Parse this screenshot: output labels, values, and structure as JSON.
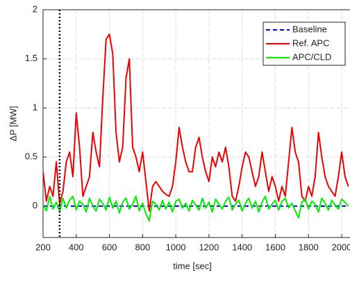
{
  "chart_data": {
    "type": "line",
    "xlabel": "time [sec]",
    "ylabel": "ΔP [MW]",
    "x": [
      200,
      220,
      240,
      260,
      280,
      300,
      320,
      340,
      360,
      380,
      400,
      420,
      440,
      460,
      480,
      500,
      520,
      540,
      560,
      580,
      600,
      620,
      640,
      660,
      680,
      700,
      720,
      740,
      760,
      780,
      800,
      820,
      840,
      860,
      880,
      900,
      920,
      940,
      960,
      980,
      1000,
      1020,
      1040,
      1060,
      1080,
      1100,
      1120,
      1140,
      1160,
      1180,
      1200,
      1220,
      1240,
      1260,
      1280,
      1300,
      1320,
      1340,
      1360,
      1380,
      1400,
      1420,
      1440,
      1460,
      1480,
      1500,
      1520,
      1540,
      1560,
      1580,
      1600,
      1620,
      1640,
      1660,
      1680,
      1700,
      1720,
      1740,
      1760,
      1780,
      1800,
      1820,
      1840,
      1860,
      1880,
      1900,
      1920,
      1940,
      1960,
      1980,
      2000,
      2020,
      2040
    ],
    "series": [
      {
        "name": "Baseline",
        "color": "#0000cc",
        "dash": true,
        "values": [
          0,
          0,
          0,
          0,
          0,
          0,
          0,
          0,
          0,
          0,
          0,
          0,
          0,
          0,
          0,
          0,
          0,
          0,
          0,
          0,
          0,
          0,
          0,
          0,
          0,
          0,
          0,
          0,
          0,
          0,
          0,
          0,
          0,
          0,
          0,
          0,
          0,
          0,
          0,
          0,
          0,
          0,
          0,
          0,
          0,
          0,
          0,
          0,
          0,
          0,
          0,
          0,
          0,
          0,
          0,
          0,
          0,
          0,
          0,
          0,
          0,
          0,
          0,
          0,
          0,
          0,
          0,
          0,
          0,
          0,
          0,
          0,
          0,
          0,
          0,
          0,
          0,
          0,
          0,
          0,
          0,
          0,
          0,
          0,
          0,
          0,
          0,
          0,
          0,
          0,
          0,
          0,
          0
        ]
      },
      {
        "name": "Ref. APC",
        "color": "#ee0000",
        "values": [
          0.35,
          0.05,
          0.2,
          0.1,
          0.45,
          0.02,
          0.15,
          0.45,
          0.55,
          0.3,
          0.95,
          0.6,
          0.1,
          0.2,
          0.3,
          0.75,
          0.55,
          0.4,
          1.1,
          1.7,
          1.75,
          1.55,
          0.75,
          0.45,
          0.6,
          1.3,
          1.5,
          0.6,
          0.5,
          0.35,
          0.55,
          0.25,
          -0.05,
          0.2,
          0.25,
          0.2,
          0.15,
          0.12,
          0.1,
          0.2,
          0.45,
          0.8,
          0.6,
          0.45,
          0.35,
          0.35,
          0.6,
          0.7,
          0.5,
          0.35,
          0.25,
          0.5,
          0.4,
          0.55,
          0.45,
          0.6,
          0.4,
          0.1,
          0.05,
          0.2,
          0.4,
          0.55,
          0.5,
          0.35,
          0.2,
          0.3,
          0.55,
          0.35,
          0.15,
          0.3,
          0.2,
          0.05,
          0.2,
          0.1,
          0.45,
          0.8,
          0.55,
          0.45,
          0.1,
          0.05,
          0.2,
          0.1,
          0.3,
          0.75,
          0.5,
          0.3,
          0.2,
          0.15,
          0.1,
          0.3,
          0.55,
          0.3,
          0.2
        ]
      },
      {
        "name": "APC/CLD",
        "color": "#00ee00",
        "values": [
          0.02,
          -0.05,
          0.1,
          -0.03,
          0.04,
          -0.06,
          0.08,
          -0.02,
          0.06,
          0.1,
          -0.04,
          0.05,
          0.02,
          -0.06,
          0.08,
          0.0,
          -0.05,
          0.07,
          0.03,
          -0.04,
          0.09,
          -0.02,
          0.05,
          -0.07,
          0.04,
          0.08,
          -0.03,
          0.02,
          0.1,
          -0.05,
          0.03,
          -0.08,
          -0.15,
          0.05,
          0.02,
          -0.04,
          0.06,
          -0.03,
          0.04,
          -0.06,
          0.05,
          0.07,
          -0.02,
          0.03,
          -0.05,
          0.06,
          0.01,
          -0.04,
          0.08,
          -0.02,
          0.04,
          -0.06,
          0.07,
          0.02,
          -0.03,
          0.05,
          0.09,
          -0.04,
          0.02,
          0.06,
          -0.05,
          0.03,
          0.08,
          -0.02,
          0.05,
          -0.06,
          0.04,
          0.1,
          -0.03,
          0.02,
          0.06,
          -0.04,
          0.05,
          0.08,
          -0.02,
          0.03,
          -0.05,
          -0.12,
          0.04,
          0.07,
          -0.03,
          0.05,
          0.02,
          -0.06,
          0.08,
          0.03,
          -0.04,
          0.06,
          0.01,
          -0.03,
          0.07,
          0.04,
          0.0
        ]
      }
    ],
    "vline": 300,
    "xlim": [
      200,
      2050
    ],
    "ylim": [
      -0.32,
      2
    ],
    "xticks": [
      200,
      400,
      600,
      800,
      1000,
      1200,
      1400,
      1600,
      1800,
      2000
    ],
    "yticks": [
      0,
      0.5,
      1,
      1.5,
      2
    ],
    "grid": true,
    "legend": "upper right"
  }
}
